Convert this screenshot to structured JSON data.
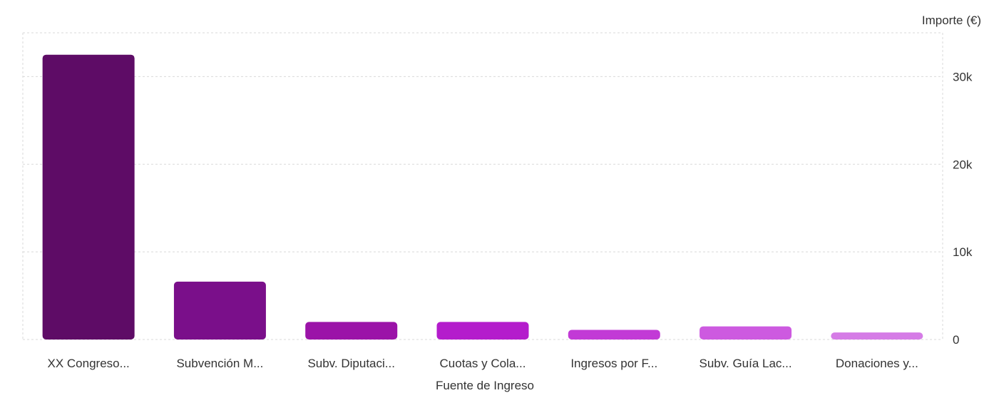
{
  "chart_data": {
    "type": "bar",
    "xlabel": "Fuente de Ingreso",
    "ylabel": "Importe (€)",
    "categories": [
      "XX Congreso...",
      "Subvención M...",
      "Subv. Diputaci...",
      "Cuotas y Cola...",
      "Ingresos por F...",
      "Subv. Guía Lac...",
      "Donaciones y..."
    ],
    "values": [
      32500,
      6600,
      2000,
      2000,
      1100,
      1500,
      800
    ],
    "ylim": [
      0,
      35000
    ],
    "yticks": [
      0,
      10000,
      20000,
      30000
    ],
    "ytick_labels": [
      "0",
      "10k",
      "20k",
      "30k"
    ],
    "y_axis_position": "right",
    "grid": true,
    "colors": [
      "#5e0c66",
      "#7a0f8a",
      "#9b13a8",
      "#b41ccc",
      "#c23ad6",
      "#cd5ae0",
      "#d57ce6"
    ]
  }
}
